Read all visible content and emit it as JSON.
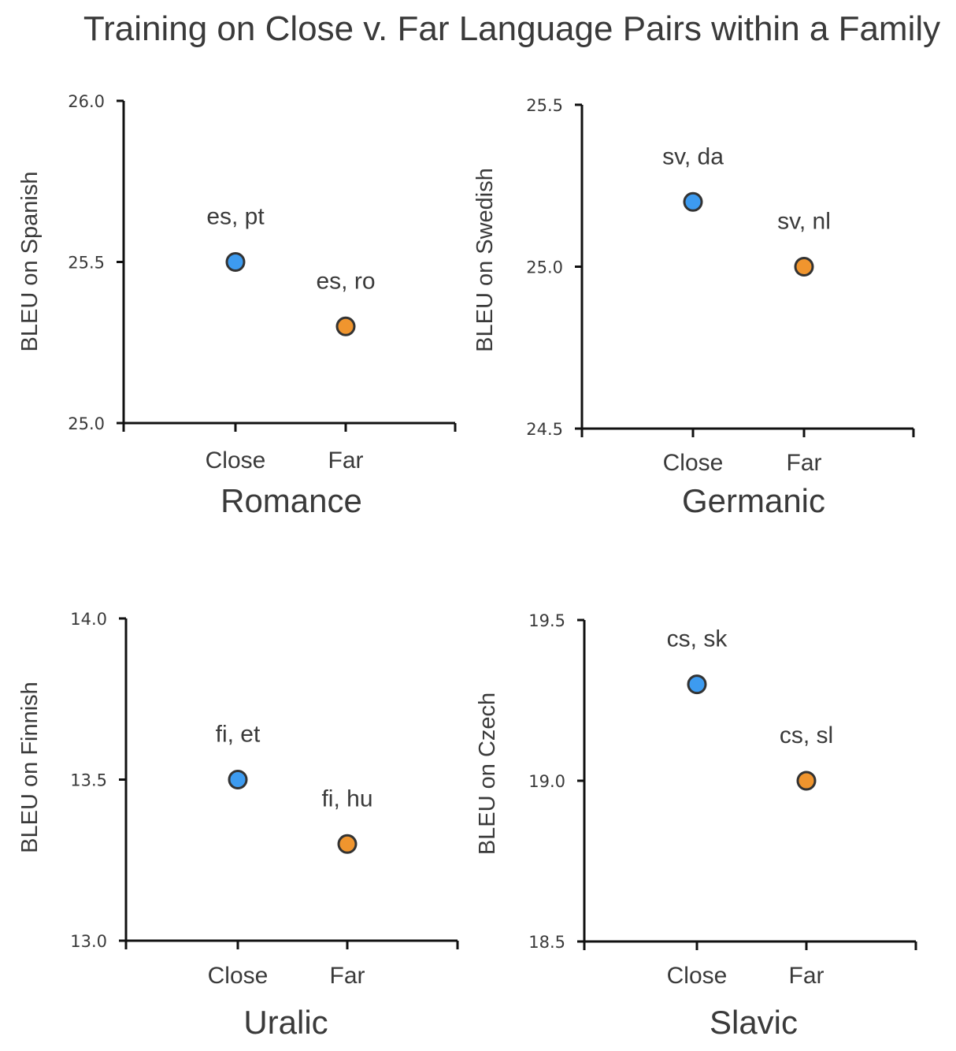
{
  "title": "Training on Close v. Far Language Pairs within a Family",
  "colors": {
    "close": "#3d9bf0",
    "far": "#f0952e",
    "marker_edge": "#333333",
    "axis": "#111111"
  },
  "chart_data": [
    {
      "type": "scatter",
      "family": "Romance",
      "ylabel": "BLEU on Spanish",
      "categories": [
        "Close",
        "Far"
      ],
      "ylim": [
        25.0,
        26.0
      ],
      "yticks": [
        "25.0",
        "25.5",
        "26.0"
      ],
      "points": [
        {
          "category": "Close",
          "value": 25.5,
          "label": "es, pt"
        },
        {
          "category": "Far",
          "value": 25.3,
          "label": "es, ro"
        }
      ]
    },
    {
      "type": "scatter",
      "family": "Germanic",
      "ylabel": "BLEU on Swedish",
      "categories": [
        "Close",
        "Far"
      ],
      "ylim": [
        24.5,
        25.5
      ],
      "yticks": [
        "24.5",
        "25.0",
        "25.5"
      ],
      "points": [
        {
          "category": "Close",
          "value": 25.2,
          "label": "sv, da"
        },
        {
          "category": "Far",
          "value": 25.0,
          "label": "sv, nl"
        }
      ]
    },
    {
      "type": "scatter",
      "family": "Uralic",
      "ylabel": "BLEU on Finnish",
      "categories": [
        "Close",
        "Far"
      ],
      "ylim": [
        13.0,
        14.0
      ],
      "yticks": [
        "13.0",
        "13.5",
        "14.0"
      ],
      "points": [
        {
          "category": "Close",
          "value": 13.5,
          "label": "fi, et"
        },
        {
          "category": "Far",
          "value": 13.3,
          "label": "fi, hu"
        }
      ]
    },
    {
      "type": "scatter",
      "family": "Slavic",
      "ylabel": "BLEU on Czech",
      "categories": [
        "Close",
        "Far"
      ],
      "ylim": [
        18.5,
        19.5
      ],
      "yticks": [
        "18.5",
        "19.0",
        "19.5"
      ],
      "points": [
        {
          "category": "Close",
          "value": 19.3,
          "label": "cs, sk"
        },
        {
          "category": "Far",
          "value": 19.0,
          "label": "cs, sl"
        }
      ]
    }
  ]
}
